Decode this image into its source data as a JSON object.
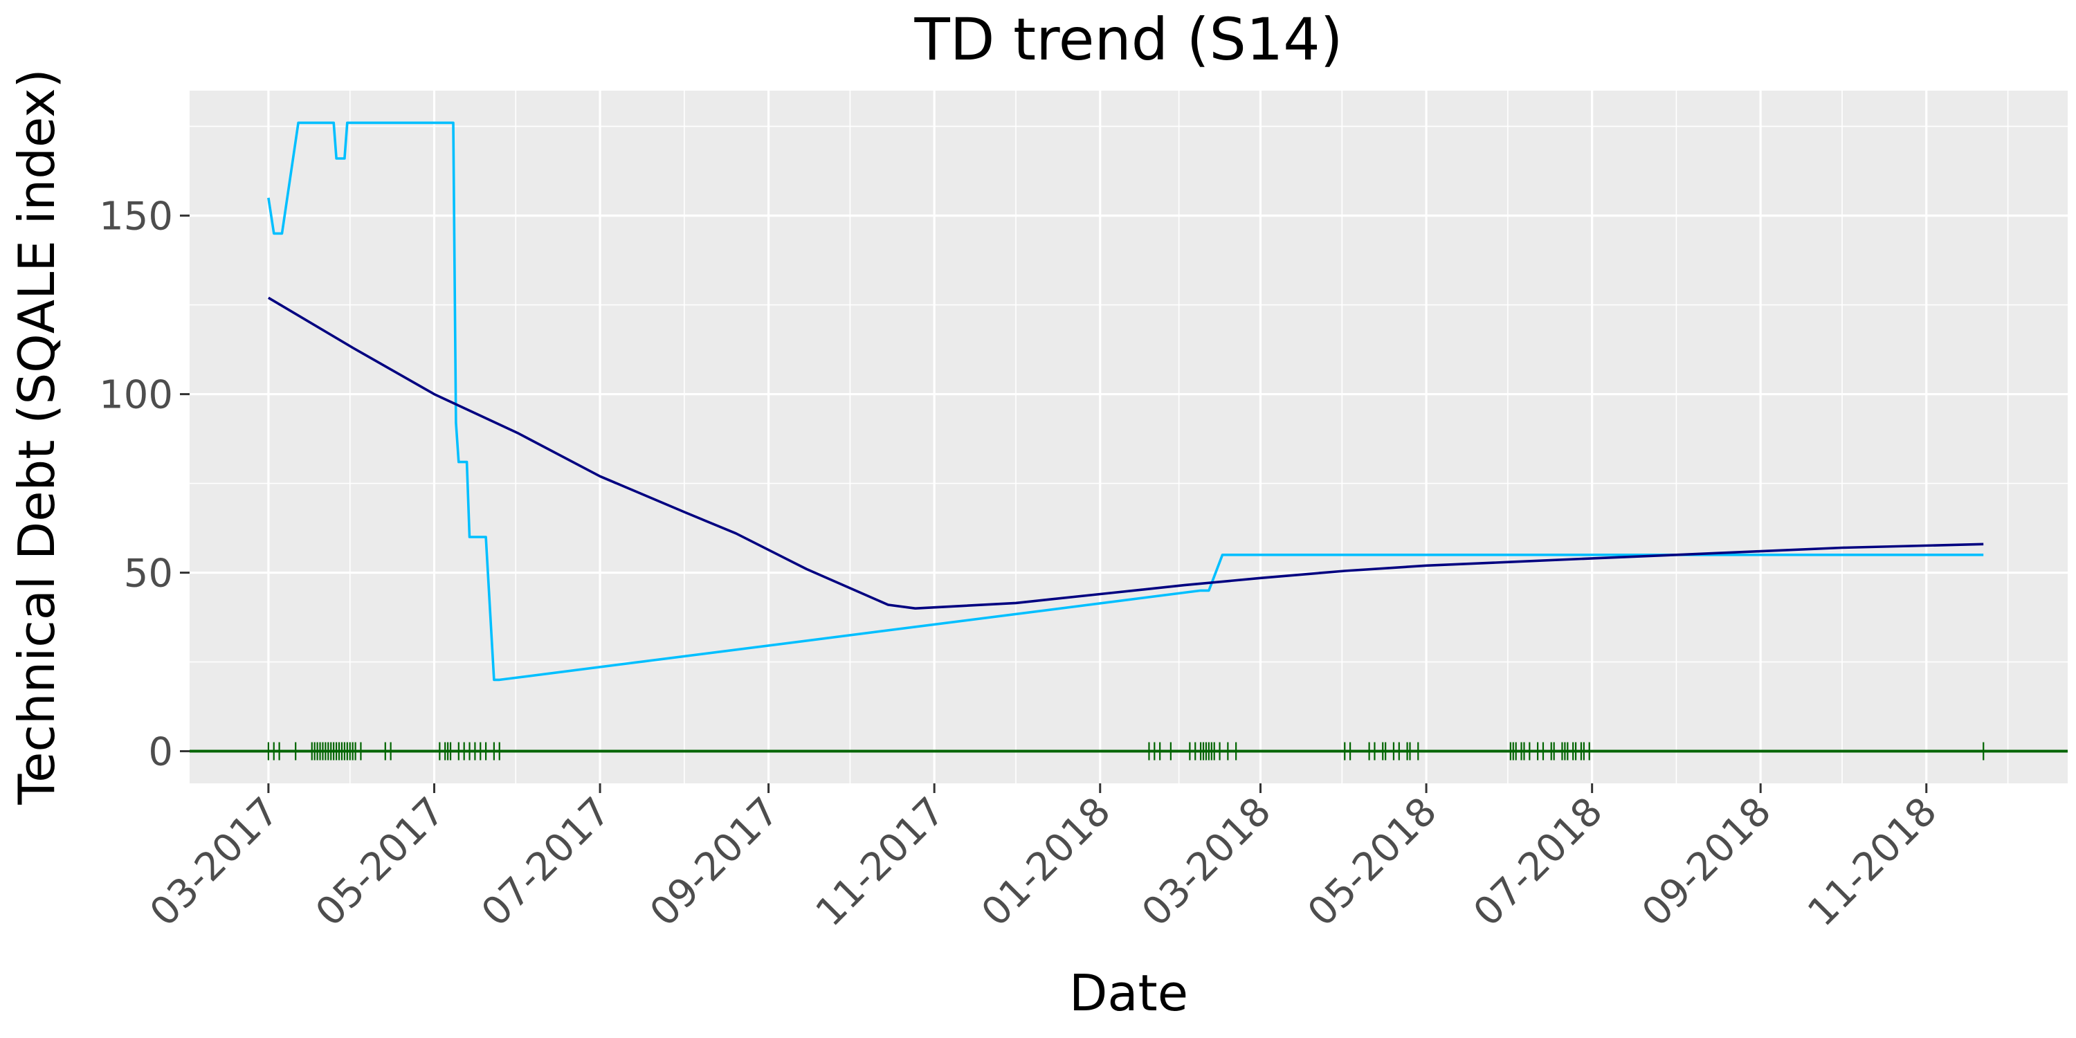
{
  "chart_data": {
    "type": "line",
    "title": "TD trend (S14)",
    "xlabel": "Date",
    "ylabel": "Technical Debt (SQALE index)",
    "x_type": "date",
    "xlim": [
      "2017-01-31",
      "2018-12-23"
    ],
    "ylim": [
      -9,
      185
    ],
    "x_ticks": [
      {
        "date": "2017-03-01",
        "label": "03-2017"
      },
      {
        "date": "2017-05-01",
        "label": "05-2017"
      },
      {
        "date": "2017-07-01",
        "label": "07-2017"
      },
      {
        "date": "2017-09-01",
        "label": "09-2017"
      },
      {
        "date": "2017-11-01",
        "label": "11-2017"
      },
      {
        "date": "2018-01-01",
        "label": "01-2018"
      },
      {
        "date": "2018-03-01",
        "label": "03-2018"
      },
      {
        "date": "2018-05-01",
        "label": "05-2018"
      },
      {
        "date": "2018-07-01",
        "label": "07-2018"
      },
      {
        "date": "2018-09-01",
        "label": "09-2018"
      },
      {
        "date": "2018-11-01",
        "label": "11-2018"
      }
    ],
    "y_ticks": [
      {
        "value": 0,
        "label": "0"
      },
      {
        "value": 50,
        "label": "50"
      },
      {
        "value": 100,
        "label": "100"
      },
      {
        "value": 150,
        "label": "150"
      }
    ],
    "grid": true,
    "legend": "none",
    "colors": {
      "panel": "#ebebeb",
      "grid": "#ffffff",
      "observed": "#00bfff",
      "smoothed": "#000080",
      "commits": "#006400"
    },
    "series": [
      {
        "role": "observed",
        "points": [
          [
            "2017-03-01",
            155
          ],
          [
            "2017-03-03",
            145
          ],
          [
            "2017-03-06",
            145
          ],
          [
            "2017-03-12",
            176
          ],
          [
            "2017-03-25",
            176
          ],
          [
            "2017-03-26",
            166
          ],
          [
            "2017-03-29",
            166
          ],
          [
            "2017-03-30",
            176
          ],
          [
            "2017-05-08",
            176
          ],
          [
            "2017-05-09",
            92
          ],
          [
            "2017-05-10",
            81
          ],
          [
            "2017-05-13",
            81
          ],
          [
            "2017-05-14",
            60
          ],
          [
            "2017-05-20",
            60
          ],
          [
            "2017-05-23",
            20
          ],
          [
            "2017-05-25",
            20
          ],
          [
            "2018-02-07",
            45
          ],
          [
            "2018-02-10",
            45
          ],
          [
            "2018-02-15",
            55
          ],
          [
            "2018-11-22",
            55
          ]
        ]
      },
      {
        "role": "smoothed",
        "points": [
          [
            "2017-03-01",
            127
          ],
          [
            "2017-04-01",
            113
          ],
          [
            "2017-05-01",
            100
          ],
          [
            "2017-06-01",
            89
          ],
          [
            "2017-07-01",
            77
          ],
          [
            "2017-08-01",
            67
          ],
          [
            "2017-08-20",
            61
          ],
          [
            "2017-09-15",
            51
          ],
          [
            "2017-10-15",
            41
          ],
          [
            "2017-10-25",
            40
          ],
          [
            "2017-12-01",
            41.5
          ],
          [
            "2018-01-01",
            44
          ],
          [
            "2018-02-01",
            46.5
          ],
          [
            "2018-03-01",
            48.5
          ],
          [
            "2018-04-01",
            50.5
          ],
          [
            "2018-05-01",
            52
          ],
          [
            "2018-06-01",
            53
          ],
          [
            "2018-07-01",
            54
          ],
          [
            "2018-08-01",
            55
          ],
          [
            "2018-09-01",
            56
          ],
          [
            "2018-10-01",
            57
          ],
          [
            "2018-11-22",
            58
          ]
        ]
      }
    ],
    "rug_dates": [
      "2017-03-01",
      "2017-03-03",
      "2017-03-05",
      "2017-03-11",
      "2017-03-17",
      "2017-03-18",
      "2017-03-19",
      "2017-03-20",
      "2017-03-21",
      "2017-03-22",
      "2017-03-23",
      "2017-03-24",
      "2017-03-25",
      "2017-03-26",
      "2017-03-27",
      "2017-03-28",
      "2017-03-29",
      "2017-03-30",
      "2017-03-31",
      "2017-04-01",
      "2017-04-02",
      "2017-04-04",
      "2017-04-13",
      "2017-04-15",
      "2017-05-03",
      "2017-05-05",
      "2017-05-06",
      "2017-05-07",
      "2017-05-10",
      "2017-05-12",
      "2017-05-14",
      "2017-05-16",
      "2017-05-18",
      "2017-05-20",
      "2017-05-23",
      "2017-05-25",
      "2018-01-19",
      "2018-01-21",
      "2018-01-23",
      "2018-01-27",
      "2018-02-03",
      "2018-02-05",
      "2018-02-07",
      "2018-02-08",
      "2018-02-09",
      "2018-02-10",
      "2018-02-11",
      "2018-02-12",
      "2018-02-14",
      "2018-02-17",
      "2018-02-20",
      "2018-04-01",
      "2018-04-03",
      "2018-04-10",
      "2018-04-12",
      "2018-04-15",
      "2018-04-16",
      "2018-04-19",
      "2018-04-21",
      "2018-04-24",
      "2018-04-25",
      "2018-04-28",
      "2018-06-01",
      "2018-06-02",
      "2018-06-03",
      "2018-06-05",
      "2018-06-06",
      "2018-06-08",
      "2018-06-11",
      "2018-06-13",
      "2018-06-16",
      "2018-06-17",
      "2018-06-20",
      "2018-06-21",
      "2018-06-22",
      "2018-06-24",
      "2018-06-25",
      "2018-06-27",
      "2018-06-28",
      "2018-06-30",
      "2018-11-22"
    ]
  }
}
